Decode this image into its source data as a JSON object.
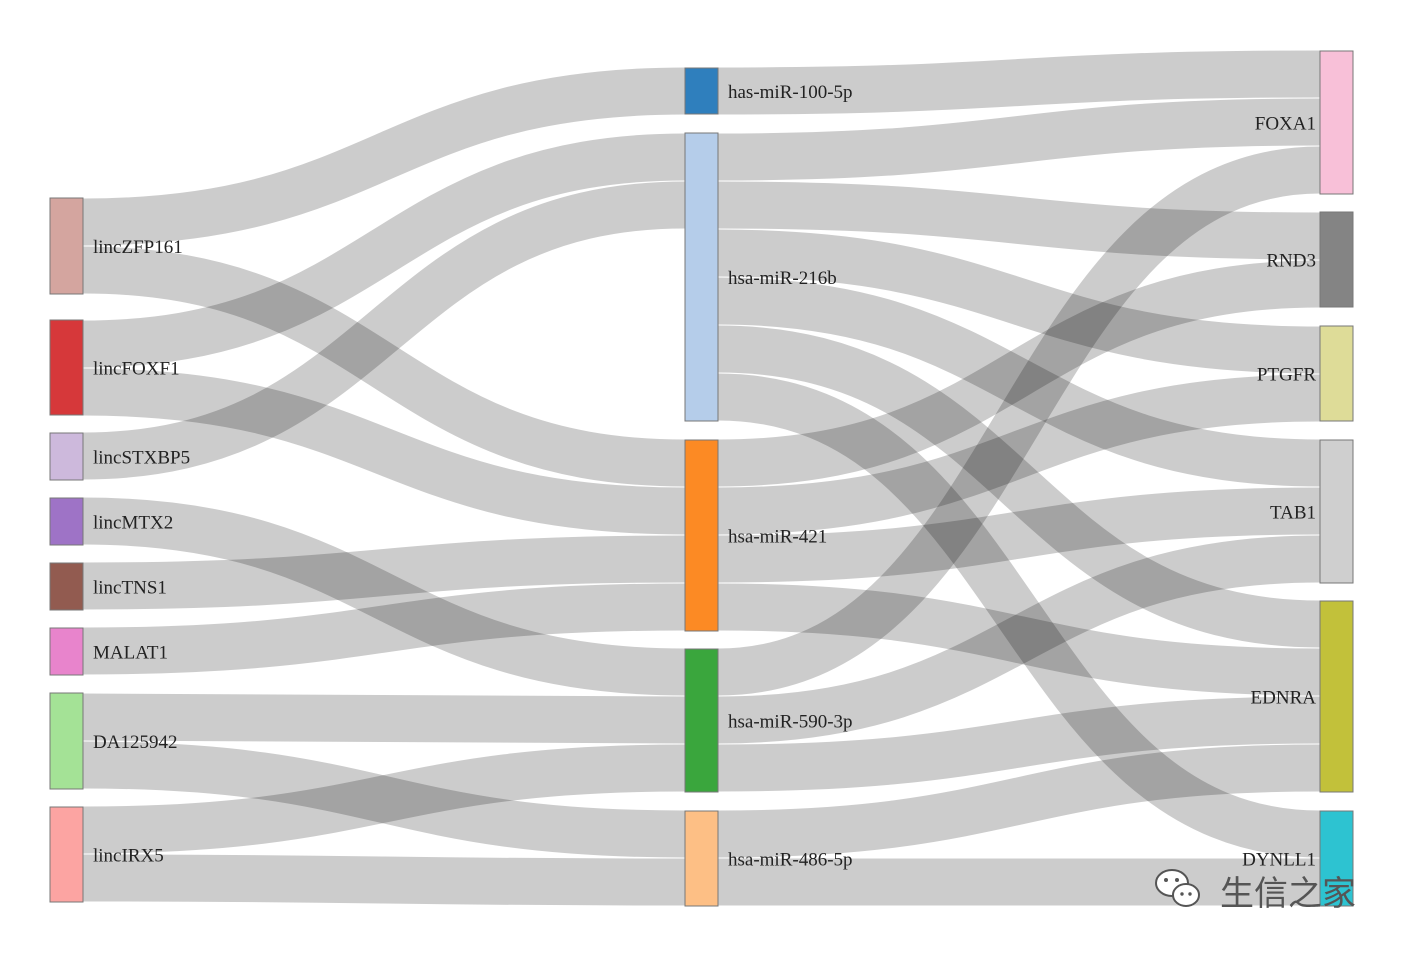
{
  "diagram": {
    "type": "sankey",
    "columns": [
      {
        "label_side": "right",
        "nodes": [
          {
            "id": "lincZFP161",
            "label": "lincZFP161",
            "color": "#d4a59f"
          },
          {
            "id": "lincFOXF1",
            "label": "lincFOXF1",
            "color": "#d6383a"
          },
          {
            "id": "lincSTXBP5",
            "label": "lincSTXBP5",
            "color": "#cdb9dc"
          },
          {
            "id": "lincMTX2",
            "label": "lincMTX2",
            "color": "#9e73c6"
          },
          {
            "id": "lincTNS1",
            "label": "lincTNS1",
            "color": "#925b50"
          },
          {
            "id": "MALAT1",
            "label": "MALAT1",
            "color": "#e884cc"
          },
          {
            "id": "DA125942",
            "label": "DA125942",
            "color": "#a4e296"
          },
          {
            "id": "lincIRX5",
            "label": "lincIRX5",
            "color": "#fca4a2"
          }
        ]
      },
      {
        "label_side": "right",
        "nodes": [
          {
            "id": "has-miR-100-5p",
            "label": "has-miR-100-5p",
            "color": "#2f7fbd"
          },
          {
            "id": "hsa-miR-216b",
            "label": "hsa-miR-216b",
            "color": "#b5cdea"
          },
          {
            "id": "hsa-miR-421",
            "label": "hsa-miR-421",
            "color": "#fc8a24"
          },
          {
            "id": "hsa-miR-590-3p",
            "label": "hsa-miR-590-3p",
            "color": "#3aa63d"
          },
          {
            "id": "hsa-miR-486-5p",
            "label": "hsa-miR-486-5p",
            "color": "#fdbf85"
          }
        ]
      },
      {
        "label_side": "left",
        "nodes": [
          {
            "id": "FOXA1",
            "label": "FOXA1",
            "color": "#f8c0d8"
          },
          {
            "id": "RND3",
            "label": "RND3",
            "color": "#848484"
          },
          {
            "id": "PTGFR",
            "label": "PTGFR",
            "color": "#dedc98"
          },
          {
            "id": "TAB1",
            "label": "TAB1",
            "color": "#cfcfcf"
          },
          {
            "id": "EDNRA",
            "label": "EDNRA",
            "color": "#c2c13a"
          },
          {
            "id": "DYNLL1",
            "label": "DYNLL1",
            "color": "#2dc3d1"
          }
        ]
      }
    ],
    "links": [
      {
        "source": "lincZFP161",
        "target": "has-miR-100-5p",
        "value": 1
      },
      {
        "source": "lincZFP161",
        "target": "hsa-miR-421",
        "value": 1
      },
      {
        "source": "lincFOXF1",
        "target": "hsa-miR-216b",
        "value": 1
      },
      {
        "source": "lincFOXF1",
        "target": "hsa-miR-421",
        "value": 1
      },
      {
        "source": "lincSTXBP5",
        "target": "hsa-miR-216b",
        "value": 1
      },
      {
        "source": "lincMTX2",
        "target": "hsa-miR-590-3p",
        "value": 1
      },
      {
        "source": "lincTNS1",
        "target": "hsa-miR-421",
        "value": 1
      },
      {
        "source": "MALAT1",
        "target": "hsa-miR-421",
        "value": 1
      },
      {
        "source": "DA125942",
        "target": "hsa-miR-590-3p",
        "value": 1
      },
      {
        "source": "DA125942",
        "target": "hsa-miR-486-5p",
        "value": 1
      },
      {
        "source": "lincIRX5",
        "target": "hsa-miR-590-3p",
        "value": 1
      },
      {
        "source": "lincIRX5",
        "target": "hsa-miR-486-5p",
        "value": 1
      },
      {
        "source": "has-miR-100-5p",
        "target": "FOXA1",
        "value": 1
      },
      {
        "source": "hsa-miR-216b",
        "target": "FOXA1",
        "value": 1
      },
      {
        "source": "hsa-miR-216b",
        "target": "RND3",
        "value": 1
      },
      {
        "source": "hsa-miR-216b",
        "target": "PTGFR",
        "value": 1
      },
      {
        "source": "hsa-miR-216b",
        "target": "TAB1",
        "value": 1
      },
      {
        "source": "hsa-miR-216b",
        "target": "EDNRA",
        "value": 1
      },
      {
        "source": "hsa-miR-216b",
        "target": "DYNLL1",
        "value": 1
      },
      {
        "source": "hsa-miR-421",
        "target": "RND3",
        "value": 1
      },
      {
        "source": "hsa-miR-421",
        "target": "PTGFR",
        "value": 1
      },
      {
        "source": "hsa-miR-421",
        "target": "TAB1",
        "value": 1
      },
      {
        "source": "hsa-miR-421",
        "target": "EDNRA",
        "value": 1
      },
      {
        "source": "hsa-miR-590-3p",
        "target": "FOXA1",
        "value": 1
      },
      {
        "source": "hsa-miR-590-3p",
        "target": "TAB1",
        "value": 1
      },
      {
        "source": "hsa-miR-590-3p",
        "target": "EDNRA",
        "value": 1
      },
      {
        "source": "hsa-miR-486-5p",
        "target": "EDNRA",
        "value": 1
      },
      {
        "source": "hsa-miR-486-5p",
        "target": "DYNLL1",
        "value": 1
      }
    ]
  },
  "watermark": {
    "text": "生信之家",
    "icon": "wechat-icon"
  }
}
